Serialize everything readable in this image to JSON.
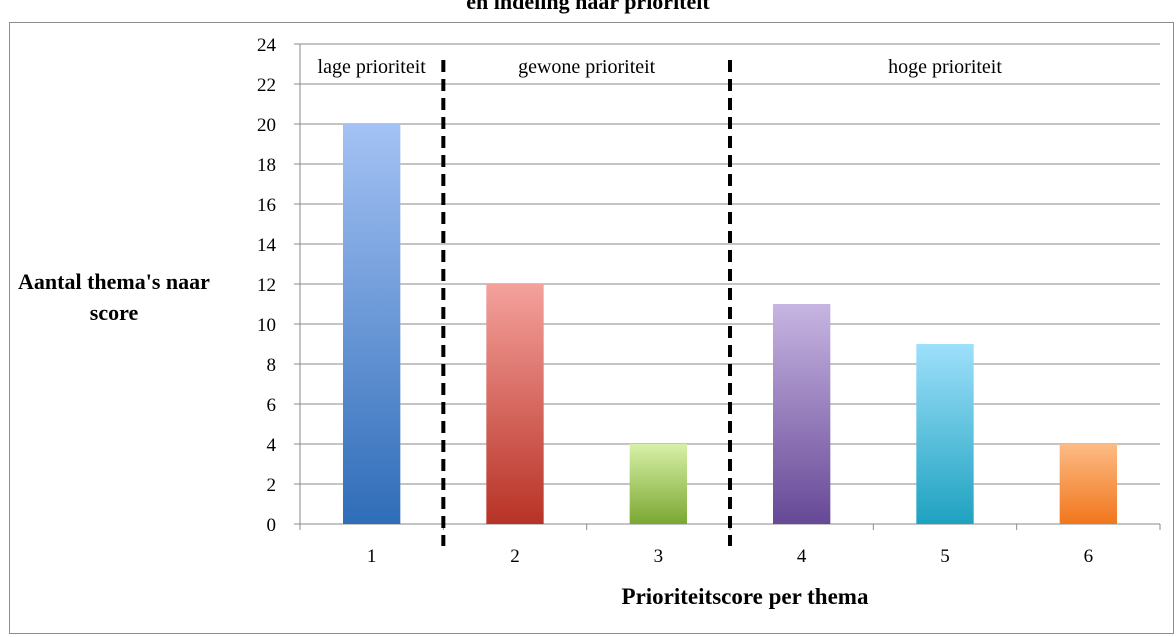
{
  "chart_data": {
    "type": "bar",
    "title": "en indeling naar prioriteit",
    "xlabel": "Prioriteitscore per thema",
    "ylabel": "Aantal thema's naar score",
    "categories": [
      "1",
      "2",
      "3",
      "4",
      "5",
      "6"
    ],
    "values": [
      20,
      12,
      4,
      11,
      9,
      4
    ],
    "ylim": [
      0,
      24
    ],
    "yticks": [
      0,
      2,
      4,
      6,
      8,
      10,
      12,
      14,
      16,
      18,
      20,
      22,
      24
    ],
    "grid": true,
    "bar_colors": [
      {
        "top": "#a4c2f4",
        "bottom": "#2f6db8"
      },
      {
        "top": "#f4a19c",
        "bottom": "#b83226"
      },
      {
        "top": "#d8f0a8",
        "bottom": "#7aa832"
      },
      {
        "top": "#c7b5e2",
        "bottom": "#664896"
      },
      {
        "top": "#9ee0fb",
        "bottom": "#1ea2c0"
      },
      {
        "top": "#fcbb85",
        "bottom": "#f1761c"
      }
    ],
    "sections": [
      {
        "label": "lage prioriteit",
        "categories": [
          "1"
        ]
      },
      {
        "label": "gewone prioriteit",
        "categories": [
          "2",
          "3"
        ]
      },
      {
        "label": "hoge prioriteit",
        "categories": [
          "4",
          "5",
          "6"
        ]
      }
    ],
    "separators_between_categories": [
      [
        "1",
        "2"
      ],
      [
        "3",
        "4"
      ]
    ]
  }
}
